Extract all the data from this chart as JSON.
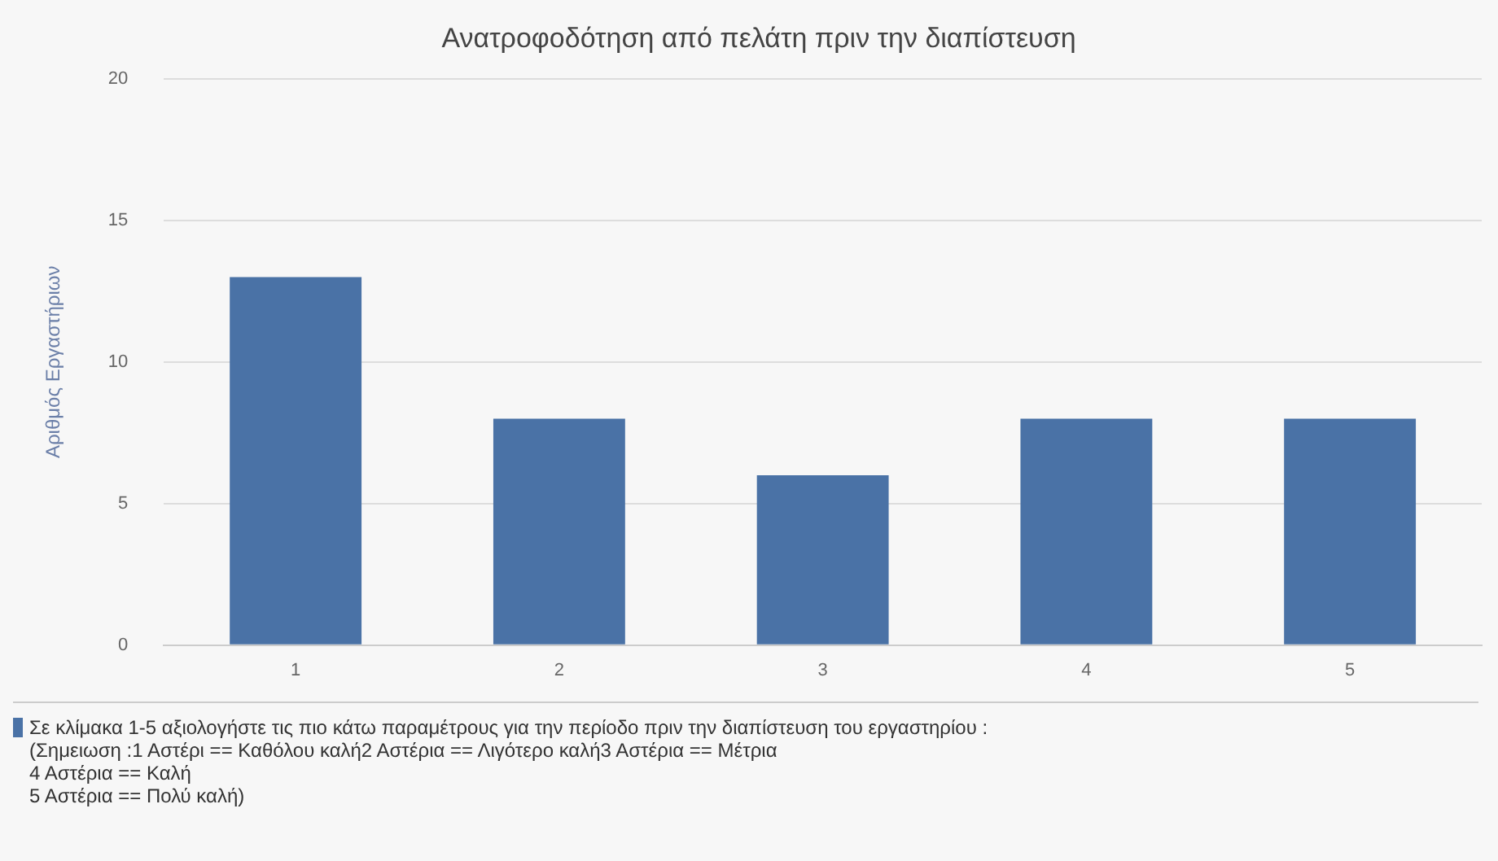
{
  "chart_data": {
    "type": "bar",
    "title": "Ανατροφοδότηση από πελάτη πριν την διαπίστευση",
    "ylabel": "Αριθμός Εργαστήριων",
    "categories": [
      "1",
      "2",
      "3",
      "4",
      "5"
    ],
    "series": [
      {
        "name": "Σε κλίμακα 1-5 αξιολογήστε τις πιο κάτω παραμέτρους για την περίοδο πριν την διαπίστευση του εργαστηρίου :\n (Σημειωση :1 Αστέρι == Καθόλου καλή2 Αστέρια == Λιγότερο καλή3 Αστέρια == Μέτρια\n4 Αστέρια == Καλή\n5 Αστέρια == Πολύ καλή)",
        "color": "#4a72a6",
        "values": [
          13,
          8,
          6,
          8,
          8
        ]
      }
    ],
    "ylim": [
      0,
      20
    ],
    "yticks": [
      0,
      5,
      10,
      15,
      20
    ],
    "grid": "y",
    "legend": "bottom"
  }
}
